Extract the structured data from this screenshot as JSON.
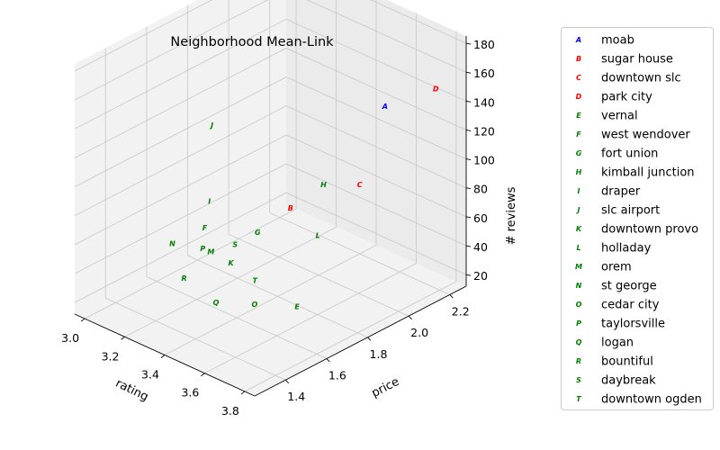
{
  "chart_data": {
    "type": "scatter",
    "projection": "3d",
    "title": "Neighborhood Mean-Link",
    "xlabel": "rating",
    "ylabel": "price",
    "zlabel": "# reviews",
    "xlim": [
      2.95,
      3.85
    ],
    "ylim": [
      1.25,
      2.28
    ],
    "zlim": [
      12,
      185
    ],
    "xticks": [
      "3.0",
      "3.2",
      "3.4",
      "3.6",
      "3.8"
    ],
    "yticks": [
      "1.4",
      "1.6",
      "1.8",
      "2.0",
      "2.2"
    ],
    "zticks": [
      "20",
      "40",
      "60",
      "80",
      "100",
      "120",
      "140",
      "160",
      "180"
    ],
    "grid": true,
    "legend_position": "outside-right",
    "points": [
      {
        "marker": "A",
        "name": "moab",
        "rating": 3.66,
        "price": 2.07,
        "reviews": 140,
        "color": "#0000ff"
      },
      {
        "marker": "B",
        "name": "sugar house",
        "rating": 3.3,
        "price": 1.96,
        "reviews": 55,
        "color": "#ff0000"
      },
      {
        "marker": "C",
        "name": "downtown slc",
        "rating": 3.4,
        "price": 2.2,
        "reviews": 60,
        "color": "#ff0000"
      },
      {
        "marker": "D",
        "name": "park city",
        "rating": 3.78,
        "price": 2.2,
        "reviews": 150,
        "color": "#ff0000"
      },
      {
        "marker": "E",
        "name": "vernal",
        "rating": 3.6,
        "price": 1.7,
        "reviews": 25,
        "color": "#008000"
      },
      {
        "marker": "F",
        "name": "west wendover",
        "rating": 3.21,
        "price": 1.63,
        "reviews": 60,
        "color": "#008000"
      },
      {
        "marker": "G",
        "name": "fort union",
        "rating": 3.3,
        "price": 1.8,
        "reviews": 50,
        "color": "#008000"
      },
      {
        "marker": "H",
        "name": "kimball junction",
        "rating": 3.26,
        "price": 2.16,
        "reviews": 54,
        "color": "#008000"
      },
      {
        "marker": "I",
        "name": "draper",
        "rating": 3.1,
        "price": 1.76,
        "reviews": 62,
        "color": "#008000"
      },
      {
        "marker": "J",
        "name": "slc airport",
        "rating": 3.0,
        "price": 1.87,
        "reviews": 100,
        "color": "#008000"
      },
      {
        "marker": "K",
        "name": "downtown provo",
        "rating": 3.31,
        "price": 1.66,
        "reviews": 40,
        "color": "#008000"
      },
      {
        "marker": "L",
        "name": "holladay",
        "rating": 3.55,
        "price": 1.85,
        "reviews": 60,
        "color": "#008000"
      },
      {
        "marker": "M",
        "name": "orem",
        "rating": 3.2,
        "price": 1.67,
        "reviews": 40,
        "color": "#008000"
      },
      {
        "marker": "N",
        "name": "st george",
        "rating": 3.13,
        "price": 1.55,
        "reviews": 50,
        "color": "#008000"
      },
      {
        "marker": "O",
        "name": "cedar city",
        "rating": 3.49,
        "price": 1.6,
        "reviews": 27,
        "color": "#008000"
      },
      {
        "marker": "P",
        "name": "taylorsville",
        "rating": 3.2,
        "price": 1.63,
        "reviews": 45,
        "color": "#008000"
      },
      {
        "marker": "Q",
        "name": "logan",
        "rating": 3.4,
        "price": 1.5,
        "reviews": 30,
        "color": "#008000"
      },
      {
        "marker": "R",
        "name": "bountiful",
        "rating": 3.22,
        "price": 1.52,
        "reviews": 34,
        "color": "#008000"
      },
      {
        "marker": "S",
        "name": "daybreak",
        "rating": 3.28,
        "price": 1.71,
        "reviews": 47,
        "color": "#008000"
      },
      {
        "marker": "T",
        "name": "downtown ogden",
        "rating": 3.42,
        "price": 1.67,
        "reviews": 34,
        "color": "#008000"
      }
    ]
  }
}
